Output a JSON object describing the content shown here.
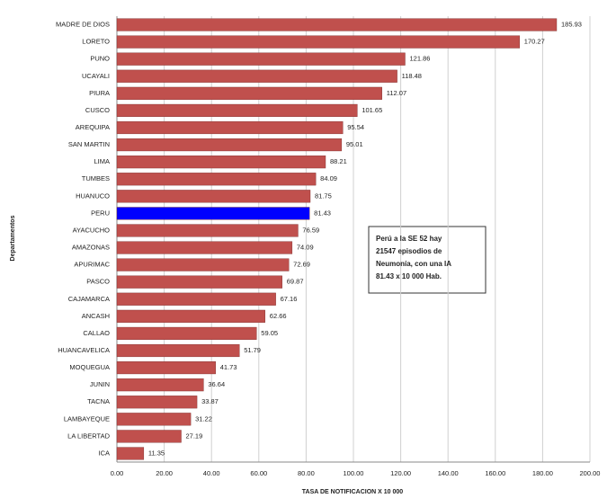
{
  "chart_data": {
    "type": "hbar",
    "x_label": "TASA DE NOTIFICACION X 10 000",
    "y_label": "Departamentos",
    "categories": [
      "MADRE DE DIOS",
      "LORETO",
      "PUNO",
      "UCAYALI",
      "PIURA",
      "CUSCO",
      "AREQUIPA",
      "SAN MARTIN",
      "LIMA",
      "TUMBES",
      "HUANUCO",
      "PERU",
      "AYACUCHO",
      "AMAZONAS",
      "APURIMAC",
      "PASCO",
      "CAJAMARCA",
      "ANCASH",
      "CALLAO",
      "HUANCAVELICA",
      "MOQUEGUA",
      "JUNIN",
      "TACNA",
      "LAMBAYEQUE",
      "LA LIBERTAD",
      "ICA"
    ],
    "values": [
      185.93,
      170.27,
      121.86,
      118.48,
      112.07,
      101.65,
      95.54,
      95.01,
      88.21,
      84.09,
      81.75,
      81.43,
      76.59,
      74.09,
      72.69,
      69.87,
      67.16,
      62.66,
      59.05,
      51.79,
      41.73,
      36.64,
      33.87,
      31.22,
      27.19,
      11.35
    ],
    "colors": [
      "#c0504d",
      "#c0504d",
      "#c0504d",
      "#c0504d",
      "#c0504d",
      "#c0504d",
      "#c0504d",
      "#c0504d",
      "#c0504d",
      "#c0504d",
      "#c0504d",
      "#0000ff",
      "#c0504d",
      "#c0504d",
      "#c0504d",
      "#c0504d",
      "#c0504d",
      "#c0504d",
      "#c0504d",
      "#c0504d",
      "#c0504d",
      "#c0504d",
      "#c0504d",
      "#c0504d",
      "#c0504d",
      "#c0504d"
    ],
    "xlim": [
      0,
      200
    ],
    "xticks": [
      {
        "value": 0,
        "label": "0.00"
      },
      {
        "value": 20,
        "label": "20.00"
      },
      {
        "value": 40,
        "label": "40.00"
      },
      {
        "value": 60,
        "label": "60.00"
      },
      {
        "value": 80,
        "label": "80.00"
      },
      {
        "value": 100,
        "label": "100.00"
      },
      {
        "value": 120,
        "label": "120.00"
      },
      {
        "value": 140,
        "label": "140.00"
      },
      {
        "value": 160,
        "label": "160.00"
      },
      {
        "value": 180,
        "label": "180.00"
      },
      {
        "value": 200,
        "label": "200.00"
      }
    ],
    "grid": true,
    "annotation": [
      "Perú a la SE 52 hay",
      "21547 episodios de",
      "Neumonía, con una IA",
      "81.43  x 10 000 Hab."
    ]
  }
}
